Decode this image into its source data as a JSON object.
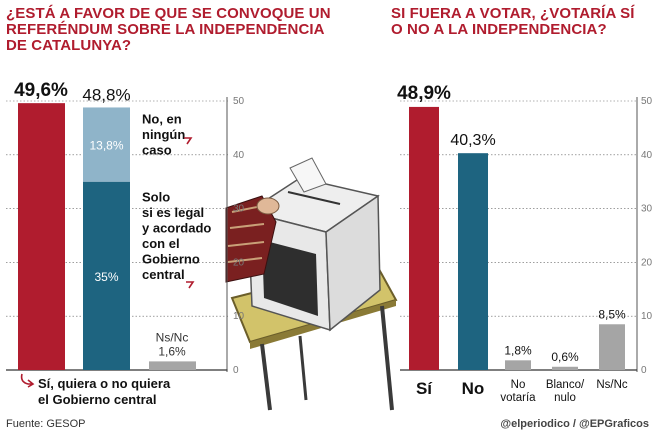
{
  "left": {
    "title": "¿ESTÁ A FAVOR DE QUE SE CONVOQUE UN REFERÉNDUM SOBRE LA INDEPENDENCIA DE CATALUNYA?",
    "footnote": "Sí, quiera o no quiera el Gobierno central"
  },
  "right": {
    "title": "SI FUERA A VOTAR, ¿VOTARÍA SÍ O NO A LA INDEPENDENCIA?"
  },
  "source": "Fuente: GESOP",
  "credit": "@elperiodico / @EPGraficos",
  "colors": {
    "red": "#b01c2e",
    "teal": "#1e6480",
    "light_blue": "#8fb4c9",
    "gray": "#a5a5a5",
    "title": "#b01c2e"
  },
  "chart_data": [
    {
      "type": "bar",
      "title": "¿ESTÁ A FAVOR DE QUE SE CONVOQUE UN REFERÉNDUM SOBRE LA INDEPENDENCIA DE CATALUNYA?",
      "ylim": [
        0,
        50
      ],
      "yticks": [
        0,
        10,
        20,
        30,
        40,
        50
      ],
      "bars": [
        {
          "key": "si",
          "value": 49.6,
          "label": "49,6%",
          "color": "red"
        },
        {
          "key": "no",
          "value": 48.8,
          "label": "48,8%",
          "segments": [
            {
              "value": 35,
              "label": "35%",
              "color": "teal",
              "annotation": [
                "Solo",
                "si es legal",
                "y acordado",
                "con el",
                "Gobierno",
                "central"
              ]
            },
            {
              "value": 13.8,
              "label": "13,8%",
              "color": "light_blue",
              "annotation": [
                "No, en",
                "ningún",
                "caso"
              ]
            }
          ]
        },
        {
          "key": "nsnc",
          "value": 1.6,
          "label": "Ns/Nc",
          "sublabel": "1,6%",
          "color": "gray"
        }
      ]
    },
    {
      "type": "bar",
      "title": "SI FUERA A VOTAR, ¿VOTARÍA SÍ O NO A LA INDEPENDENCIA?",
      "ylim": [
        0,
        50
      ],
      "yticks": [
        0,
        10,
        20,
        30,
        40,
        50
      ],
      "categories": [
        "Sí",
        "No",
        "No votaría",
        "Blanco/ nulo",
        "Ns/Nc"
      ],
      "category_lines": [
        [
          "Sí"
        ],
        [
          "No"
        ],
        [
          "No",
          "votaría"
        ],
        [
          "Blanco/",
          "nulo"
        ],
        [
          "Ns/Nc"
        ]
      ],
      "values": [
        48.9,
        40.3,
        1.8,
        0.6,
        8.5
      ],
      "value_labels": [
        "48,9%",
        "40,3%",
        "1,8%",
        "0,6%",
        "8,5%"
      ],
      "colors": [
        "red",
        "teal",
        "gray",
        "gray",
        "gray"
      ]
    }
  ]
}
